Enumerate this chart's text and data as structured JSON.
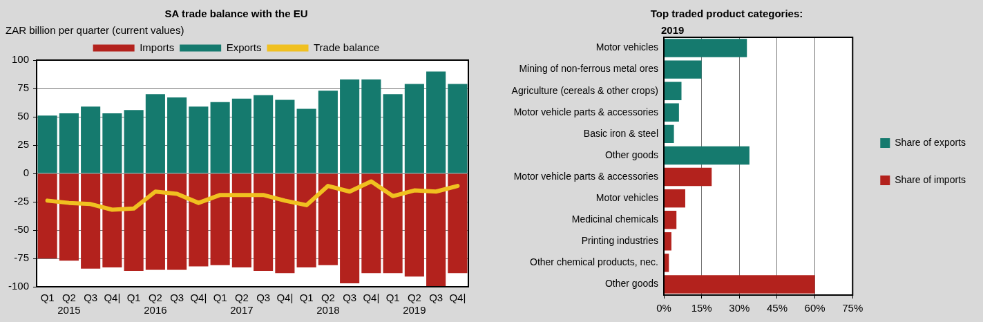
{
  "chart_data": [
    {
      "type": "bar",
      "title": "SA trade balance with the EU",
      "ylabel": "ZAR billion per quarter (current values)",
      "categories": [
        "Q1",
        "Q2\n2015",
        "Q3",
        "Q4|",
        "Q1",
        "Q2\n2016",
        "Q3",
        "Q4|",
        "Q1",
        "Q2\n2017",
        "Q3",
        "Q4|",
        "Q1",
        "Q2\n2018",
        "Q3",
        "Q4|",
        "Q1",
        "Q2\n2019",
        "Q3",
        "Q4|"
      ],
      "stacked": true,
      "series": [
        {
          "name": "Imports",
          "color": "#b3221d",
          "values": [
            -75,
            -77,
            -84,
            -83,
            -86,
            -85,
            -85,
            -82,
            -81,
            -83,
            -86,
            -88,
            -83,
            -81,
            -97,
            -88,
            -88,
            -91,
            -100,
            -88
          ]
        },
        {
          "name": "Exports",
          "color": "#157a6e",
          "values": [
            51,
            53,
            59,
            53,
            56,
            70,
            67,
            59,
            63,
            66,
            69,
            65,
            57,
            73,
            83,
            83,
            70,
            79,
            90,
            79
          ]
        },
        {
          "name": "Trade balance",
          "type": "line",
          "color": "#f0c020",
          "values": [
            -24,
            -26,
            -27,
            -32,
            -31,
            -16,
            -18,
            -26,
            -19,
            -19,
            -19,
            -24,
            -28,
            -11,
            -16,
            -7,
            -20,
            -15,
            -16,
            -11
          ]
        }
      ],
      "ylim": [
        -100,
        100
      ],
      "yticks": [
        -100,
        -75,
        -50,
        -25,
        0,
        25,
        50,
        75,
        100
      ],
      "grid": "y",
      "legend": "top",
      "marker": "none"
    },
    {
      "type": "bar",
      "orientation": "horizontal",
      "stacked": true,
      "title": "Top traded product categories:",
      "subtitle": "2019",
      "categories": [
        "Motor vehicles",
        "Mining of non-ferrous metal ores",
        "Agriculture (cereals & other crops)",
        "Motor vehicle parts & accessories",
        "Basic iron & steel",
        "Other goods",
        "Motor vehicle parts & accessories",
        "Motor vehicles",
        "Medicinal chemicals",
        "Printing industries",
        "Other chemical products, nec.",
        "Other goods"
      ],
      "series": [
        {
          "name": "Share of exports",
          "color": "#157a6e",
          "values": [
            33,
            15,
            7,
            6,
            4,
            34,
            null,
            null,
            null,
            null,
            null,
            null
          ]
        },
        {
          "name": "Share of imports",
          "color": "#b3221d",
          "values": [
            null,
            null,
            null,
            null,
            null,
            null,
            19,
            8.5,
            5,
            3,
            2,
            60
          ]
        }
      ],
      "xlim": [
        0,
        75
      ],
      "xticks": [
        {
          "value": 0,
          "label": "0%"
        },
        {
          "value": 15,
          "label": "15%"
        },
        {
          "value": 30,
          "label": "30%"
        },
        {
          "value": 45,
          "label": "45%"
        },
        {
          "value": 60,
          "label": "60%"
        },
        {
          "value": 75,
          "label": "75%"
        }
      ],
      "grid": "x",
      "legend": "right"
    }
  ]
}
